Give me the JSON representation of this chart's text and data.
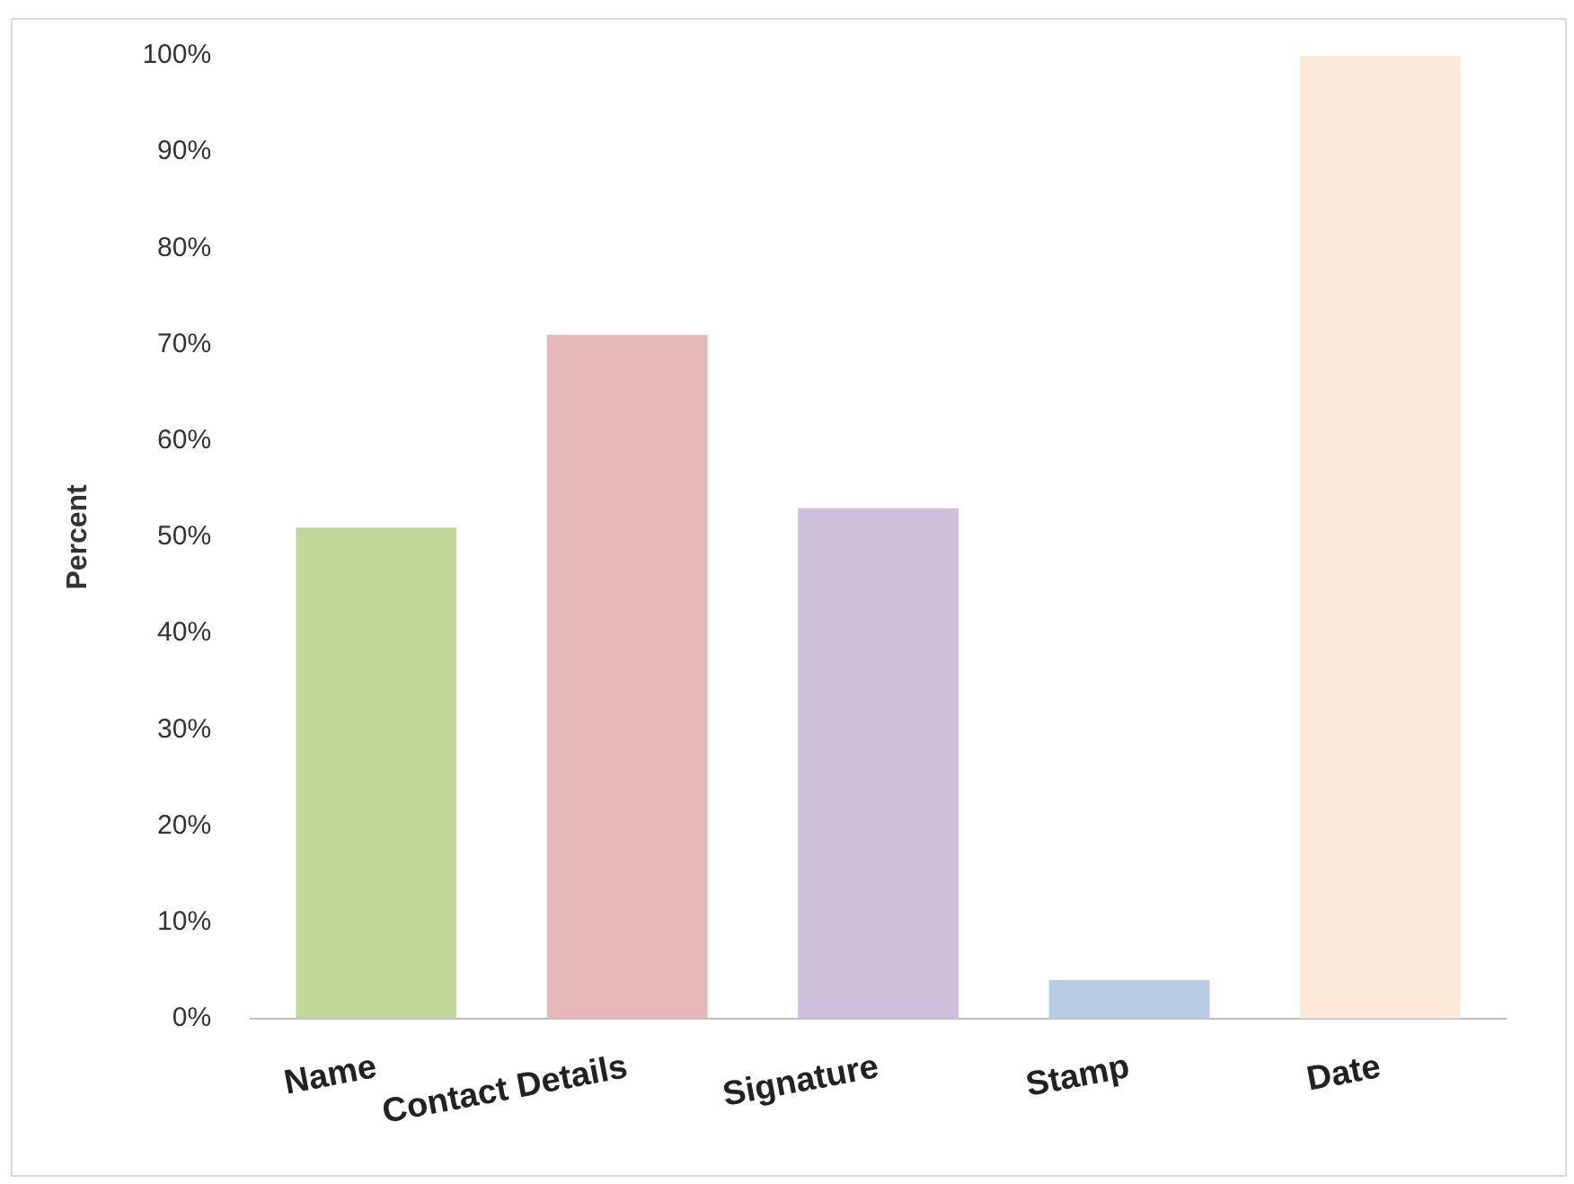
{
  "chart_data": {
    "type": "bar",
    "ylabel": "Percent",
    "categories": [
      "Name",
      "Contact Details",
      "Signature",
      "Stamp",
      "Date"
    ],
    "values": [
      51,
      71,
      53,
      4,
      100
    ],
    "colors": [
      "#c4d79b",
      "#e6b8b7",
      "#ccc0da",
      "#b8cce4",
      "#fde9d9"
    ],
    "ylim": [
      0,
      100
    ],
    "yticks": [
      {
        "value": 0,
        "label": "0%"
      },
      {
        "value": 10,
        "label": "10%"
      },
      {
        "value": 20,
        "label": "20%"
      },
      {
        "value": 30,
        "label": "30%"
      },
      {
        "value": 40,
        "label": "40%"
      },
      {
        "value": 50,
        "label": "50%"
      },
      {
        "value": 60,
        "label": "60%"
      },
      {
        "value": 70,
        "label": "70%"
      },
      {
        "value": 80,
        "label": "80%"
      },
      {
        "value": 90,
        "label": "90%"
      },
      {
        "value": 100,
        "label": "100%"
      }
    ],
    "grid": false,
    "legend": false
  }
}
